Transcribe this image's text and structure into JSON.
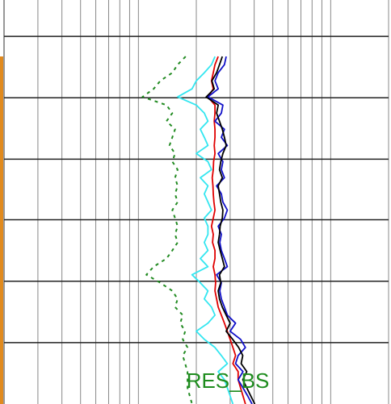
{
  "chart_data": {
    "type": "log-track",
    "title": "RES_BS",
    "log_scale": true,
    "grid": true,
    "xlim": [
      0.2,
      20
    ],
    "xticks": [
      0.2,
      0.3,
      0.4,
      0.5,
      0.6,
      0.7,
      0.8,
      0.9,
      1,
      2,
      3,
      4,
      5,
      6,
      7,
      8,
      9,
      10,
      20
    ],
    "ylim": [
      0,
      50
    ],
    "yticks": [
      4.5,
      12.1,
      19.7,
      27.2,
      34.8,
      42.4
    ],
    "depth": [
      7,
      8,
      9,
      10,
      11,
      12,
      13,
      14,
      15,
      16,
      17,
      18,
      19,
      20,
      21,
      22,
      23,
      24,
      25,
      26,
      27,
      28,
      29,
      30,
      31,
      32,
      33,
      34,
      35,
      36,
      37,
      38,
      39,
      40,
      41,
      42,
      43,
      44,
      45,
      46,
      47,
      48,
      49,
      50
    ],
    "series": [
      {
        "color": "#228b22",
        "dashed": true,
        "values": [
          1.76,
          1.6,
          1.5,
          1.3,
          1.2,
          1.05,
          1.4,
          1.5,
          1.4,
          1.55,
          1.5,
          1.45,
          1.55,
          1.5,
          1.6,
          1.55,
          1.6,
          1.55,
          1.6,
          1.5,
          1.55,
          1.6,
          1.55,
          1.6,
          1.5,
          1.4,
          1.2,
          1.1,
          1.3,
          1.5,
          1.6,
          1.55,
          1.7,
          1.65,
          1.75,
          1.7,
          1.8,
          1.7,
          1.75,
          1.8,
          1.8,
          1.8,
          1.85,
          1.9
        ]
      },
      {
        "color": "#33e6f0",
        "values": [
          2.5,
          2.4,
          2.2,
          2.0,
          1.9,
          1.6,
          2.0,
          2.2,
          2.3,
          2.1,
          2.2,
          2.3,
          2.0,
          2.3,
          2.4,
          2.1,
          2.3,
          2.2,
          2.3,
          2.4,
          2.2,
          2.3,
          2.3,
          2.2,
          2.3,
          2.1,
          2.3,
          1.9,
          2.1,
          2.3,
          2.2,
          2.4,
          2.5,
          2.3,
          2.0,
          2.2,
          2.5,
          2.7,
          2.9,
          2.6,
          2.8,
          2.9,
          3.0,
          3.1
        ]
      },
      {
        "color": "#e00000",
        "values": [
          2.6,
          2.5,
          2.45,
          2.4,
          2.45,
          2.3,
          2.5,
          2.5,
          2.48,
          2.5,
          2.5,
          2.48,
          2.5,
          2.46,
          2.45,
          2.42,
          2.44,
          2.45,
          2.47,
          2.5,
          2.45,
          2.4,
          2.45,
          2.43,
          2.5,
          2.5,
          2.45,
          2.5,
          2.52,
          2.5,
          2.55,
          2.6,
          2.7,
          2.8,
          2.9,
          3.0,
          3.1,
          3.2,
          3.1,
          3.3,
          3.3,
          3.4,
          3.5,
          3.6
        ]
      },
      {
        "color": "#1010c8",
        "values": [
          2.86,
          2.8,
          2.6,
          2.5,
          2.6,
          2.3,
          2.75,
          2.7,
          2.5,
          2.8,
          2.7,
          2.9,
          2.6,
          2.75,
          2.7,
          2.8,
          2.55,
          2.7,
          2.75,
          2.9,
          2.8,
          2.6,
          2.7,
          2.65,
          2.7,
          2.8,
          2.9,
          2.55,
          2.7,
          2.65,
          2.7,
          2.8,
          2.9,
          3.2,
          3.0,
          3.4,
          3.6,
          3.3,
          3.2,
          3.5,
          3.3,
          3.5,
          3.7,
          3.9
        ]
      },
      {
        "color": "#000000",
        "values": [
          2.73,
          2.64,
          2.55,
          2.41,
          2.48,
          2.25,
          2.6,
          2.55,
          2.64,
          2.73,
          2.8,
          2.86,
          2.75,
          2.68,
          2.64,
          2.73,
          2.6,
          2.64,
          2.68,
          2.75,
          2.73,
          2.66,
          2.64,
          2.6,
          2.66,
          2.73,
          2.8,
          2.64,
          2.68,
          2.6,
          2.64,
          2.73,
          2.86,
          3.0,
          2.86,
          3.09,
          3.32,
          3.49,
          3.42,
          3.66,
          3.49,
          3.66,
          3.84,
          4.03
        ]
      }
    ]
  }
}
